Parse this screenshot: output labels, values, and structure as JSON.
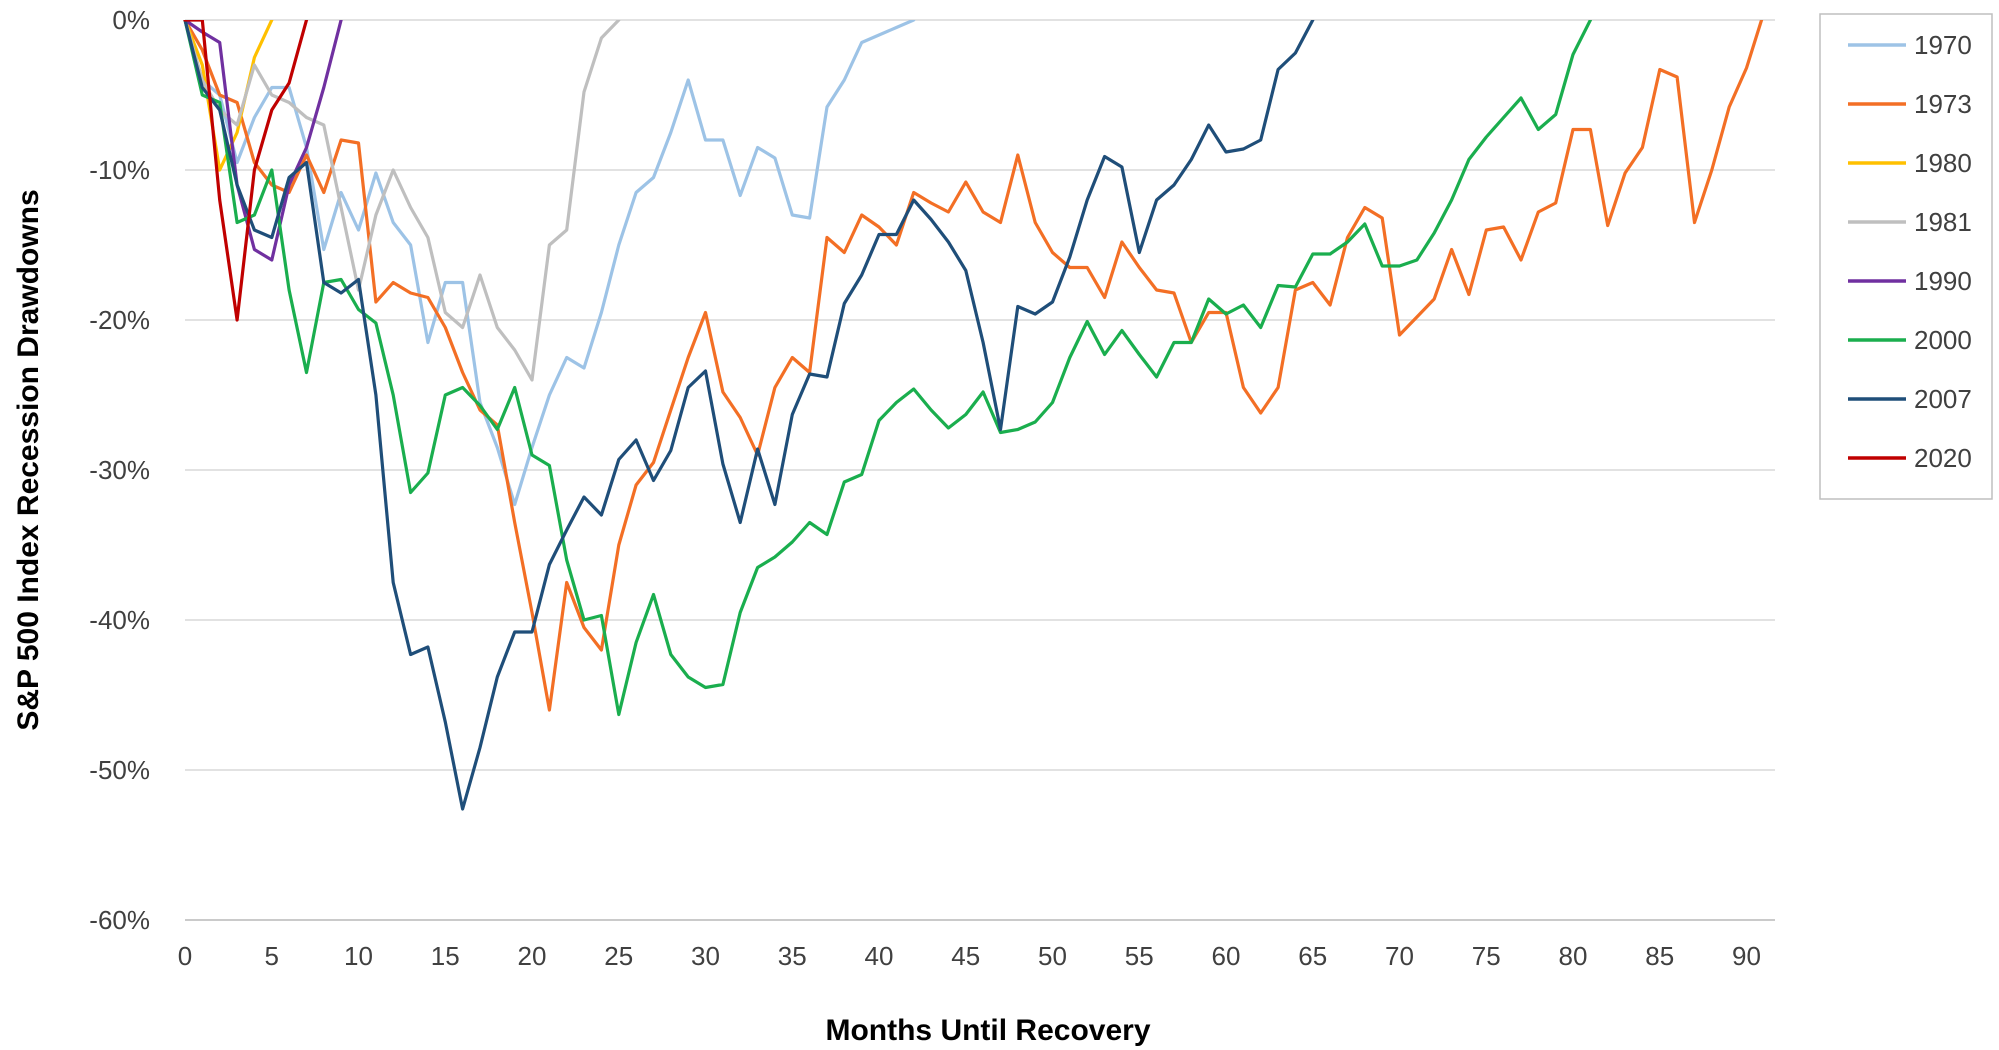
{
  "chart_data": {
    "type": "line",
    "title": "",
    "xlabel": "Months Until Recovery",
    "ylabel": "S&P 500 Index Recession Drawdowns",
    "xlim": [
      0,
      92
    ],
    "ylim": [
      -60,
      0
    ],
    "x_ticks": [
      0,
      5,
      10,
      15,
      20,
      25,
      30,
      35,
      40,
      45,
      50,
      55,
      60,
      65,
      70,
      75,
      80,
      85,
      90
    ],
    "y_ticks": [
      0,
      -10,
      -20,
      -30,
      -40,
      -50,
      -60
    ],
    "y_tick_labels": [
      "0%",
      "-10%",
      "-20%",
      "-30%",
      "-40%",
      "-50%",
      "-60%"
    ],
    "grid": "horizontal",
    "legend_position": "top-right",
    "series": [
      {
        "name": "1970",
        "color": "#9DC3E6",
        "values": [
          0,
          -4,
          -5,
          -9.5,
          -6.5,
          -4.5,
          -4.5,
          -8.5,
          -15.3,
          -11.5,
          -14,
          -10.2,
          -13.5,
          -15,
          -21.5,
          -17.5,
          -17.5,
          -25.5,
          -28.5,
          -32.3,
          -28.5,
          -25,
          -22.5,
          -23.2,
          -19.5,
          -15,
          -11.5,
          -10.5,
          -7.5,
          -4,
          -8,
          -8,
          -11.7,
          -8.5,
          -9.2,
          -13,
          -13.2,
          -5.8,
          -4,
          -1.5,
          -1,
          -0.5,
          0
        ]
      },
      {
        "name": "1973",
        "color": "#F36F25",
        "values": [
          0,
          -2,
          -5,
          -5.5,
          -9.5,
          -11,
          -11.5,
          -9,
          -11.5,
          -8,
          -8.2,
          -18.8,
          -17.5,
          -18.2,
          -18.5,
          -20.5,
          -23.5,
          -26,
          -27,
          -33.5,
          -39.5,
          -46,
          -37.5,
          -40.5,
          -42,
          -35,
          -31,
          -29.5,
          -26,
          -22.5,
          -19.5,
          -24.8,
          -26.5,
          -29,
          -24.5,
          -22.5,
          -23.5,
          -14.5,
          -15.5,
          -13,
          -13.8,
          -15,
          -11.5,
          -12.2,
          -12.8,
          -10.8,
          -12.8,
          -13.5,
          -9,
          -13.5,
          -15.5,
          -16.5,
          -16.5,
          -18.5,
          -14.8,
          -16.5,
          -18,
          -18.2,
          -21.5,
          -19.5,
          -19.5,
          -24.5,
          -26.2,
          -24.5,
          -18,
          -17.5,
          -19,
          -14.5,
          -12.5,
          -13.2,
          -21,
          -19.8,
          -18.6,
          -15.3,
          -18.3,
          -14,
          -13.8,
          -16,
          -12.8,
          -12.2,
          -7.3,
          -7.3,
          -13.7,
          -10.2,
          -8.5,
          -3.3,
          -3.8,
          -13.5,
          -10,
          -5.8,
          -3.2,
          0.5
        ]
      },
      {
        "name": "1980",
        "color": "#FFC000",
        "values": [
          0,
          -3,
          -10,
          -7.5,
          -2.5,
          0
        ]
      },
      {
        "name": "1981",
        "color": "#BFBFBF",
        "values": [
          0,
          -4,
          -6,
          -7,
          -3,
          -5,
          -5.5,
          -6.5,
          -7,
          -12.5,
          -18,
          -13,
          -10,
          -12.5,
          -14.5,
          -19.5,
          -20.5,
          -17,
          -20.5,
          -22,
          -24,
          -15,
          -14,
          -4.8,
          -1.2,
          0
        ]
      },
      {
        "name": "1990",
        "color": "#7030A0",
        "values": [
          0,
          -0.8,
          -1.5,
          -11,
          -15.3,
          -16,
          -11,
          -8.5,
          -4.5,
          0
        ]
      },
      {
        "name": "2000",
        "color": "#1AAE4E",
        "values": [
          0,
          -5,
          -5.5,
          -13.5,
          -13,
          -10,
          -18,
          -23.5,
          -17.5,
          -17.3,
          -19.3,
          -20.2,
          -25,
          -31.5,
          -30.2,
          -25,
          -24.5,
          -25.7,
          -27.3,
          -24.5,
          -29,
          -29.7,
          -36,
          -40,
          -39.7,
          -46.3,
          -41.5,
          -38.3,
          -42.3,
          -43.8,
          -44.5,
          -44.3,
          -39.5,
          -36.5,
          -35.8,
          -34.8,
          -33.5,
          -34.3,
          -30.8,
          -30.3,
          -26.7,
          -25.5,
          -24.6,
          -26,
          -27.2,
          -26.3,
          -24.8,
          -27.5,
          -27.3,
          -26.8,
          -25.5,
          -22.5,
          -20.1,
          -22.3,
          -20.7,
          -22.3,
          -23.8,
          -21.5,
          -21.5,
          -18.6,
          -19.6,
          -19,
          -20.5,
          -17.7,
          -17.8,
          -15.6,
          -15.6,
          -14.8,
          -13.6,
          -16.4,
          -16.4,
          -16,
          -14.2,
          -12,
          -9.3,
          -7.8,
          -6.5,
          -5.2,
          -7.3,
          -6.3,
          -2.3,
          0
        ]
      },
      {
        "name": "2007",
        "color": "#1F4E79",
        "values": [
          0,
          -4.5,
          -6,
          -11,
          -14,
          -14.5,
          -10.5,
          -9.5,
          -17.5,
          -18.2,
          -17.3,
          -25,
          -37.5,
          -42.3,
          -41.8,
          -46.8,
          -52.6,
          -48.5,
          -43.8,
          -40.8,
          -40.8,
          -36.3,
          -34,
          -31.8,
          -33,
          -29.3,
          -28,
          -30.7,
          -28.7,
          -24.5,
          -23.4,
          -29.6,
          -33.5,
          -28.6,
          -32.3,
          -26.3,
          -23.6,
          -23.8,
          -18.9,
          -17,
          -14.3,
          -14.3,
          -12,
          -13.3,
          -14.8,
          -16.7,
          -21.5,
          -27.3,
          -19.1,
          -19.6,
          -18.8,
          -15.8,
          -12,
          -9.1,
          -9.8,
          -15.5,
          -12,
          -11,
          -9.3,
          -7,
          -8.8,
          -8.6,
          -8,
          -3.3,
          -2.2,
          0
        ]
      },
      {
        "name": "2020",
        "color": "#C00000",
        "values": [
          0,
          0,
          -12,
          -20,
          -10,
          -6,
          -4.2,
          0
        ]
      }
    ]
  }
}
